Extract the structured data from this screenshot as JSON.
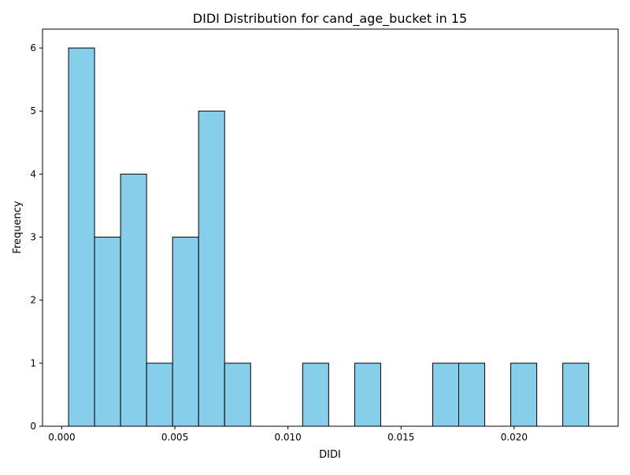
{
  "chart_data": {
    "type": "bar",
    "title": "DIDI Distribution for cand_age_bucket in 15",
    "xlabel": "DIDI",
    "ylabel": "Frequency",
    "xlim": [
      -0.00085,
      0.0246
    ],
    "ylim": [
      0,
      6.3
    ],
    "grid": false,
    "bar_color": "#87CEEB",
    "edge_color": "#000000",
    "bins": [
      {
        "x0": 0.0003,
        "x1": 0.00145,
        "count": 6
      },
      {
        "x0": 0.00145,
        "x1": 0.0026,
        "count": 3
      },
      {
        "x0": 0.0026,
        "x1": 0.00375,
        "count": 4
      },
      {
        "x0": 0.00375,
        "x1": 0.0049,
        "count": 1
      },
      {
        "x0": 0.0049,
        "x1": 0.00605,
        "count": 3
      },
      {
        "x0": 0.00605,
        "x1": 0.0072,
        "count": 5
      },
      {
        "x0": 0.0072,
        "x1": 0.00835,
        "count": 1
      },
      {
        "x0": 0.00835,
        "x1": 0.0095,
        "count": 0
      },
      {
        "x0": 0.0095,
        "x1": 0.01065,
        "count": 0
      },
      {
        "x0": 0.01065,
        "x1": 0.0118,
        "count": 1
      },
      {
        "x0": 0.0118,
        "x1": 0.01295,
        "count": 0
      },
      {
        "x0": 0.01295,
        "x1": 0.0141,
        "count": 1
      },
      {
        "x0": 0.0141,
        "x1": 0.01525,
        "count": 0
      },
      {
        "x0": 0.01525,
        "x1": 0.0164,
        "count": 0
      },
      {
        "x0": 0.0164,
        "x1": 0.01755,
        "count": 1
      },
      {
        "x0": 0.01755,
        "x1": 0.0187,
        "count": 1
      },
      {
        "x0": 0.0187,
        "x1": 0.01985,
        "count": 0
      },
      {
        "x0": 0.01985,
        "x1": 0.021,
        "count": 1
      },
      {
        "x0": 0.021,
        "x1": 0.02215,
        "count": 0
      },
      {
        "x0": 0.02215,
        "x1": 0.0233,
        "count": 1
      }
    ],
    "xticks": [
      {
        "value": 0.0,
        "label": "0.000"
      },
      {
        "value": 0.005,
        "label": "0.005"
      },
      {
        "value": 0.01,
        "label": "0.010"
      },
      {
        "value": 0.015,
        "label": "0.015"
      },
      {
        "value": 0.02,
        "label": "0.020"
      }
    ],
    "yticks": [
      {
        "value": 0,
        "label": "0"
      },
      {
        "value": 1,
        "label": "1"
      },
      {
        "value": 2,
        "label": "2"
      },
      {
        "value": 3,
        "label": "3"
      },
      {
        "value": 4,
        "label": "4"
      },
      {
        "value": 5,
        "label": "5"
      },
      {
        "value": 6,
        "label": "6"
      }
    ]
  }
}
